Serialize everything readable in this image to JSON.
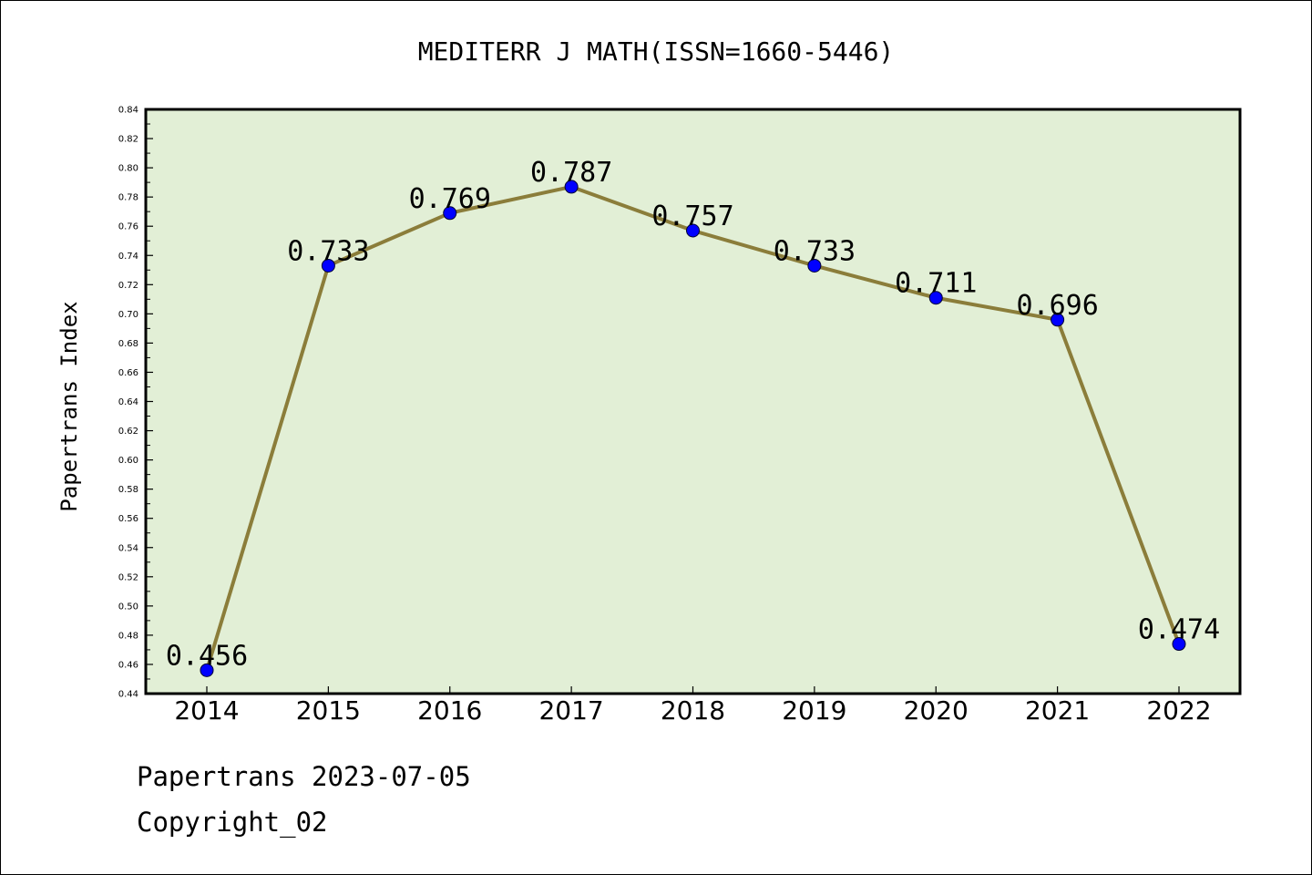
{
  "chart_data": {
    "type": "line",
    "title": "MEDITERR J MATH(ISSN=1660-5446)",
    "xlabel": "",
    "ylabel": "Papertrans Index",
    "categories": [
      "2014",
      "2015",
      "2016",
      "2017",
      "2018",
      "2019",
      "2020",
      "2021",
      "2022"
    ],
    "series": [
      {
        "values": [
          0.456,
          0.733,
          0.769,
          0.787,
          0.757,
          0.733,
          0.711,
          0.696,
          0.474
        ],
        "data_labels": [
          "0.456",
          "0.733",
          "0.769",
          "0.787",
          "0.757",
          "0.733",
          "0.711",
          "0.696",
          "0.474"
        ]
      }
    ],
    "ylim": [
      0.44,
      0.84
    ],
    "yticks": [
      "0.44",
      "0.46",
      "0.48",
      "0.50",
      "0.52",
      "0.54",
      "0.56",
      "0.58",
      "0.60",
      "0.62",
      "0.64",
      "0.66",
      "0.68",
      "0.70",
      "0.72",
      "0.74",
      "0.76",
      "0.78",
      "0.80",
      "0.82",
      "0.84"
    ],
    "grid": false,
    "colors": {
      "plot_background": "#e2efd6",
      "line": "#8b7d3a",
      "marker": "#0000ff"
    }
  },
  "footer": {
    "line1": "Papertrans 2023-07-05",
    "line2": "Copyright_02"
  }
}
